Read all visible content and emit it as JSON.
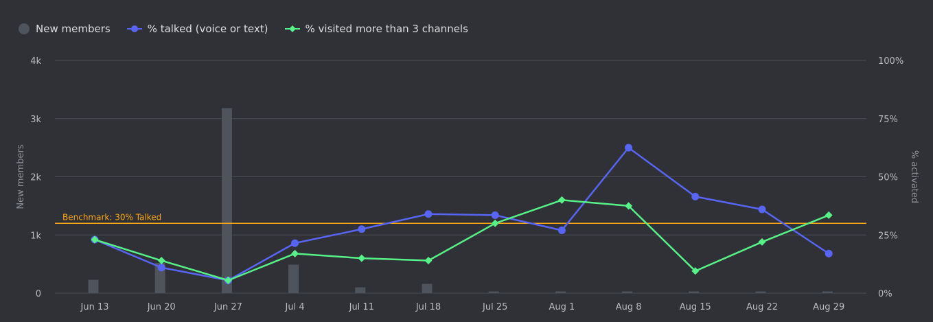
{
  "colors": {
    "background": "#2f3136",
    "grid": "#4a4d53",
    "bar": "#4f545c",
    "talked": "#5865f2",
    "visited": "#57f287",
    "benchmark": "#faa81a"
  },
  "legend": [
    {
      "label": "New members",
      "marker": "circle",
      "color": "#4f545c"
    },
    {
      "label": "% talked (voice or text)",
      "marker": "circle-line",
      "color": "#5865f2"
    },
    {
      "label": "% visited more than 3 channels",
      "marker": "diamond-line",
      "color": "#57f287"
    }
  ],
  "chart_data": {
    "type": "bar-line-combo",
    "categories": [
      "Jun 13",
      "Jun 20",
      "Jun 27",
      "Jul 4",
      "Jul 11",
      "Jul 18",
      "Jul 25",
      "Aug 1",
      "Aug 8",
      "Aug 15",
      "Aug 22",
      "Aug 29"
    ],
    "xlabel": "",
    "ylabel_left": "New members",
    "ylabel_right": "% activated",
    "ylim_left": [
      0,
      4000
    ],
    "ylim_right": [
      0,
      100
    ],
    "yticks_left": [
      "0",
      "1k",
      "2k",
      "3k",
      "4k"
    ],
    "yticks_right": [
      "0%",
      "25%",
      "50%",
      "75%",
      "100%"
    ],
    "grid": true,
    "legend_position": "top-left",
    "series": [
      {
        "name": "New members",
        "type": "bar",
        "axis": "left",
        "values": [
          230,
          520,
          3180,
          490,
          100,
          160,
          30,
          30,
          30,
          30,
          30,
          30
        ]
      },
      {
        "name": "% talked (voice or text)",
        "type": "line",
        "axis": "right",
        "marker": "circle",
        "values": [
          23,
          11,
          5.5,
          21.5,
          27.5,
          34,
          33.5,
          27,
          62.5,
          41.5,
          36,
          17
        ]
      },
      {
        "name": "% visited more than 3 channels",
        "type": "line",
        "axis": "right",
        "marker": "diamond",
        "values": [
          23,
          14,
          5.5,
          17,
          15,
          14,
          30,
          40,
          37.5,
          9.5,
          22,
          33.5
        ]
      }
    ],
    "annotations": [
      {
        "type": "hline",
        "axis": "right",
        "value": 30,
        "label": "Benchmark: 30% Talked"
      }
    ]
  }
}
